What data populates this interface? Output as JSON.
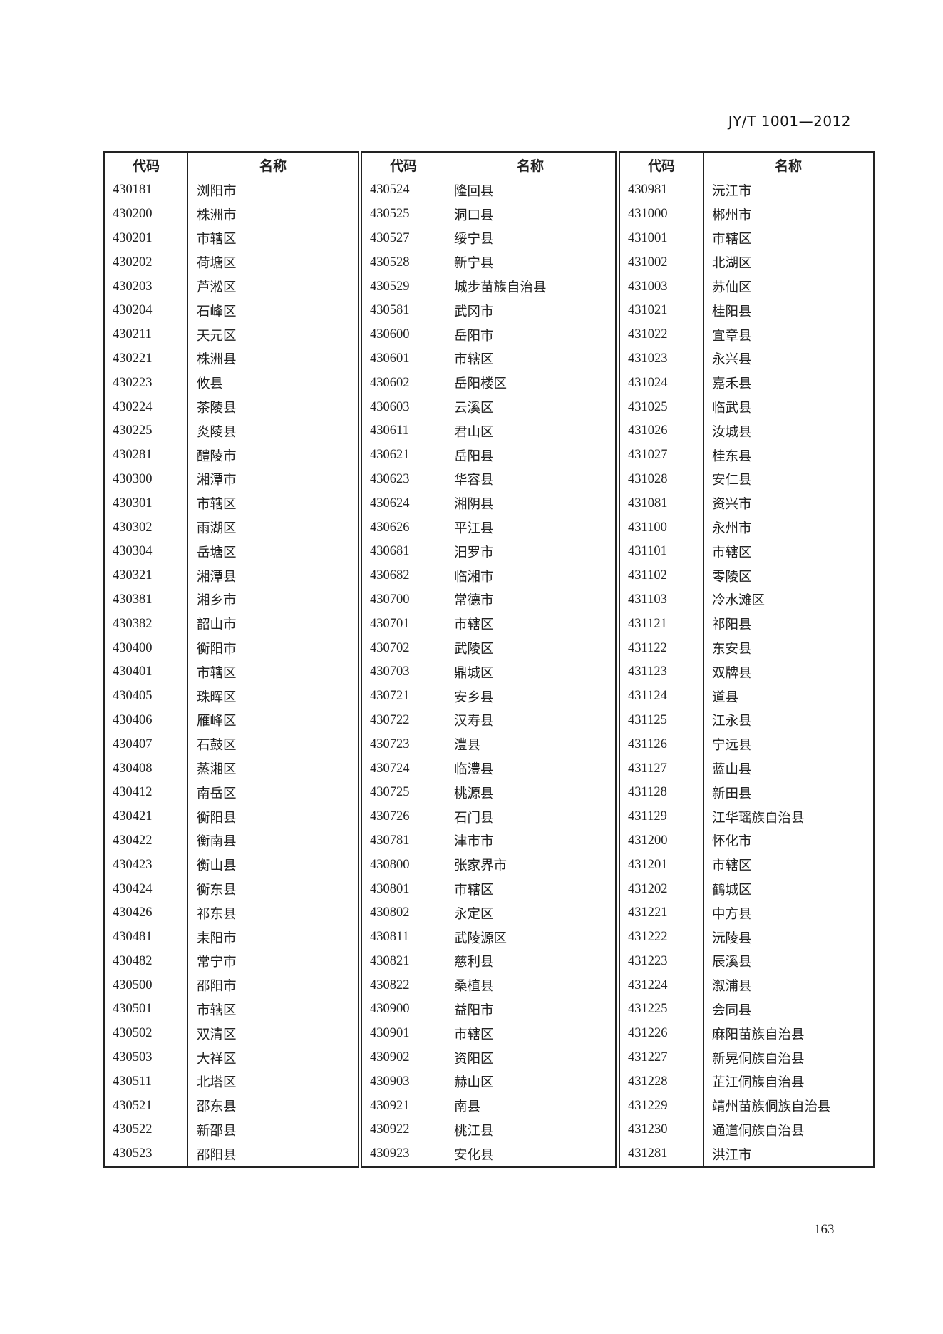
{
  "header": {
    "standard_number": "JY/T 1001—2012"
  },
  "page_number": "163",
  "columns": {
    "code": "代码",
    "name": "名称"
  },
  "tables": [
    {
      "rows": [
        [
          "430181",
          "浏阳市"
        ],
        [
          "430200",
          "株洲市"
        ],
        [
          "430201",
          "市辖区"
        ],
        [
          "430202",
          "荷塘区"
        ],
        [
          "430203",
          "芦淞区"
        ],
        [
          "430204",
          "石峰区"
        ],
        [
          "430211",
          "天元区"
        ],
        [
          "430221",
          "株洲县"
        ],
        [
          "430223",
          "攸县"
        ],
        [
          "430224",
          "茶陵县"
        ],
        [
          "430225",
          "炎陵县"
        ],
        [
          "430281",
          "醴陵市"
        ],
        [
          "430300",
          "湘潭市"
        ],
        [
          "430301",
          "市辖区"
        ],
        [
          "430302",
          "雨湖区"
        ],
        [
          "430304",
          "岳塘区"
        ],
        [
          "430321",
          "湘潭县"
        ],
        [
          "430381",
          "湘乡市"
        ],
        [
          "430382",
          "韶山市"
        ],
        [
          "430400",
          "衡阳市"
        ],
        [
          "430401",
          "市辖区"
        ],
        [
          "430405",
          "珠晖区"
        ],
        [
          "430406",
          "雁峰区"
        ],
        [
          "430407",
          "石鼓区"
        ],
        [
          "430408",
          "蒸湘区"
        ],
        [
          "430412",
          "南岳区"
        ],
        [
          "430421",
          "衡阳县"
        ],
        [
          "430422",
          "衡南县"
        ],
        [
          "430423",
          "衡山县"
        ],
        [
          "430424",
          "衡东县"
        ],
        [
          "430426",
          "祁东县"
        ],
        [
          "430481",
          "耒阳市"
        ],
        [
          "430482",
          "常宁市"
        ],
        [
          "430500",
          "邵阳市"
        ],
        [
          "430501",
          "市辖区"
        ],
        [
          "430502",
          "双清区"
        ],
        [
          "430503",
          "大祥区"
        ],
        [
          "430511",
          "北塔区"
        ],
        [
          "430521",
          "邵东县"
        ],
        [
          "430522",
          "新邵县"
        ],
        [
          "430523",
          "邵阳县"
        ]
      ]
    },
    {
      "rows": [
        [
          "430524",
          "隆回县"
        ],
        [
          "430525",
          "洞口县"
        ],
        [
          "430527",
          "绥宁县"
        ],
        [
          "430528",
          "新宁县"
        ],
        [
          "430529",
          "城步苗族自治县"
        ],
        [
          "430581",
          "武冈市"
        ],
        [
          "430600",
          "岳阳市"
        ],
        [
          "430601",
          "市辖区"
        ],
        [
          "430602",
          "岳阳楼区"
        ],
        [
          "430603",
          "云溪区"
        ],
        [
          "430611",
          "君山区"
        ],
        [
          "430621",
          "岳阳县"
        ],
        [
          "430623",
          "华容县"
        ],
        [
          "430624",
          "湘阴县"
        ],
        [
          "430626",
          "平江县"
        ],
        [
          "430681",
          "汨罗市"
        ],
        [
          "430682",
          "临湘市"
        ],
        [
          "430700",
          "常德市"
        ],
        [
          "430701",
          "市辖区"
        ],
        [
          "430702",
          "武陵区"
        ],
        [
          "430703",
          "鼎城区"
        ],
        [
          "430721",
          "安乡县"
        ],
        [
          "430722",
          "汉寿县"
        ],
        [
          "430723",
          "澧县"
        ],
        [
          "430724",
          "临澧县"
        ],
        [
          "430725",
          "桃源县"
        ],
        [
          "430726",
          "石门县"
        ],
        [
          "430781",
          "津市市"
        ],
        [
          "430800",
          "张家界市"
        ],
        [
          "430801",
          "市辖区"
        ],
        [
          "430802",
          "永定区"
        ],
        [
          "430811",
          "武陵源区"
        ],
        [
          "430821",
          "慈利县"
        ],
        [
          "430822",
          "桑植县"
        ],
        [
          "430900",
          "益阳市"
        ],
        [
          "430901",
          "市辖区"
        ],
        [
          "430902",
          "资阳区"
        ],
        [
          "430903",
          "赫山区"
        ],
        [
          "430921",
          "南县"
        ],
        [
          "430922",
          "桃江县"
        ],
        [
          "430923",
          "安化县"
        ]
      ]
    },
    {
      "rows": [
        [
          "430981",
          "沅江市"
        ],
        [
          "431000",
          "郴州市"
        ],
        [
          "431001",
          "市辖区"
        ],
        [
          "431002",
          "北湖区"
        ],
        [
          "431003",
          "苏仙区"
        ],
        [
          "431021",
          "桂阳县"
        ],
        [
          "431022",
          "宜章县"
        ],
        [
          "431023",
          "永兴县"
        ],
        [
          "431024",
          "嘉禾县"
        ],
        [
          "431025",
          "临武县"
        ],
        [
          "431026",
          "汝城县"
        ],
        [
          "431027",
          "桂东县"
        ],
        [
          "431028",
          "安仁县"
        ],
        [
          "431081",
          "资兴市"
        ],
        [
          "431100",
          "永州市"
        ],
        [
          "431101",
          "市辖区"
        ],
        [
          "431102",
          "零陵区"
        ],
        [
          "431103",
          "冷水滩区"
        ],
        [
          "431121",
          "祁阳县"
        ],
        [
          "431122",
          "东安县"
        ],
        [
          "431123",
          "双牌县"
        ],
        [
          "431124",
          "道县"
        ],
        [
          "431125",
          "江永县"
        ],
        [
          "431126",
          "宁远县"
        ],
        [
          "431127",
          "蓝山县"
        ],
        [
          "431128",
          "新田县"
        ],
        [
          "431129",
          "江华瑶族自治县"
        ],
        [
          "431200",
          "怀化市"
        ],
        [
          "431201",
          "市辖区"
        ],
        [
          "431202",
          "鹤城区"
        ],
        [
          "431221",
          "中方县"
        ],
        [
          "431222",
          "沅陵县"
        ],
        [
          "431223",
          "辰溪县"
        ],
        [
          "431224",
          "溆浦县"
        ],
        [
          "431225",
          "会同县"
        ],
        [
          "431226",
          "麻阳苗族自治县"
        ],
        [
          "431227",
          "新晃侗族自治县"
        ],
        [
          "431228",
          "芷江侗族自治县"
        ],
        [
          "431229",
          "靖州苗族侗族自治县"
        ],
        [
          "431230",
          "通道侗族自治县"
        ],
        [
          "431281",
          "洪江市"
        ]
      ]
    }
  ]
}
